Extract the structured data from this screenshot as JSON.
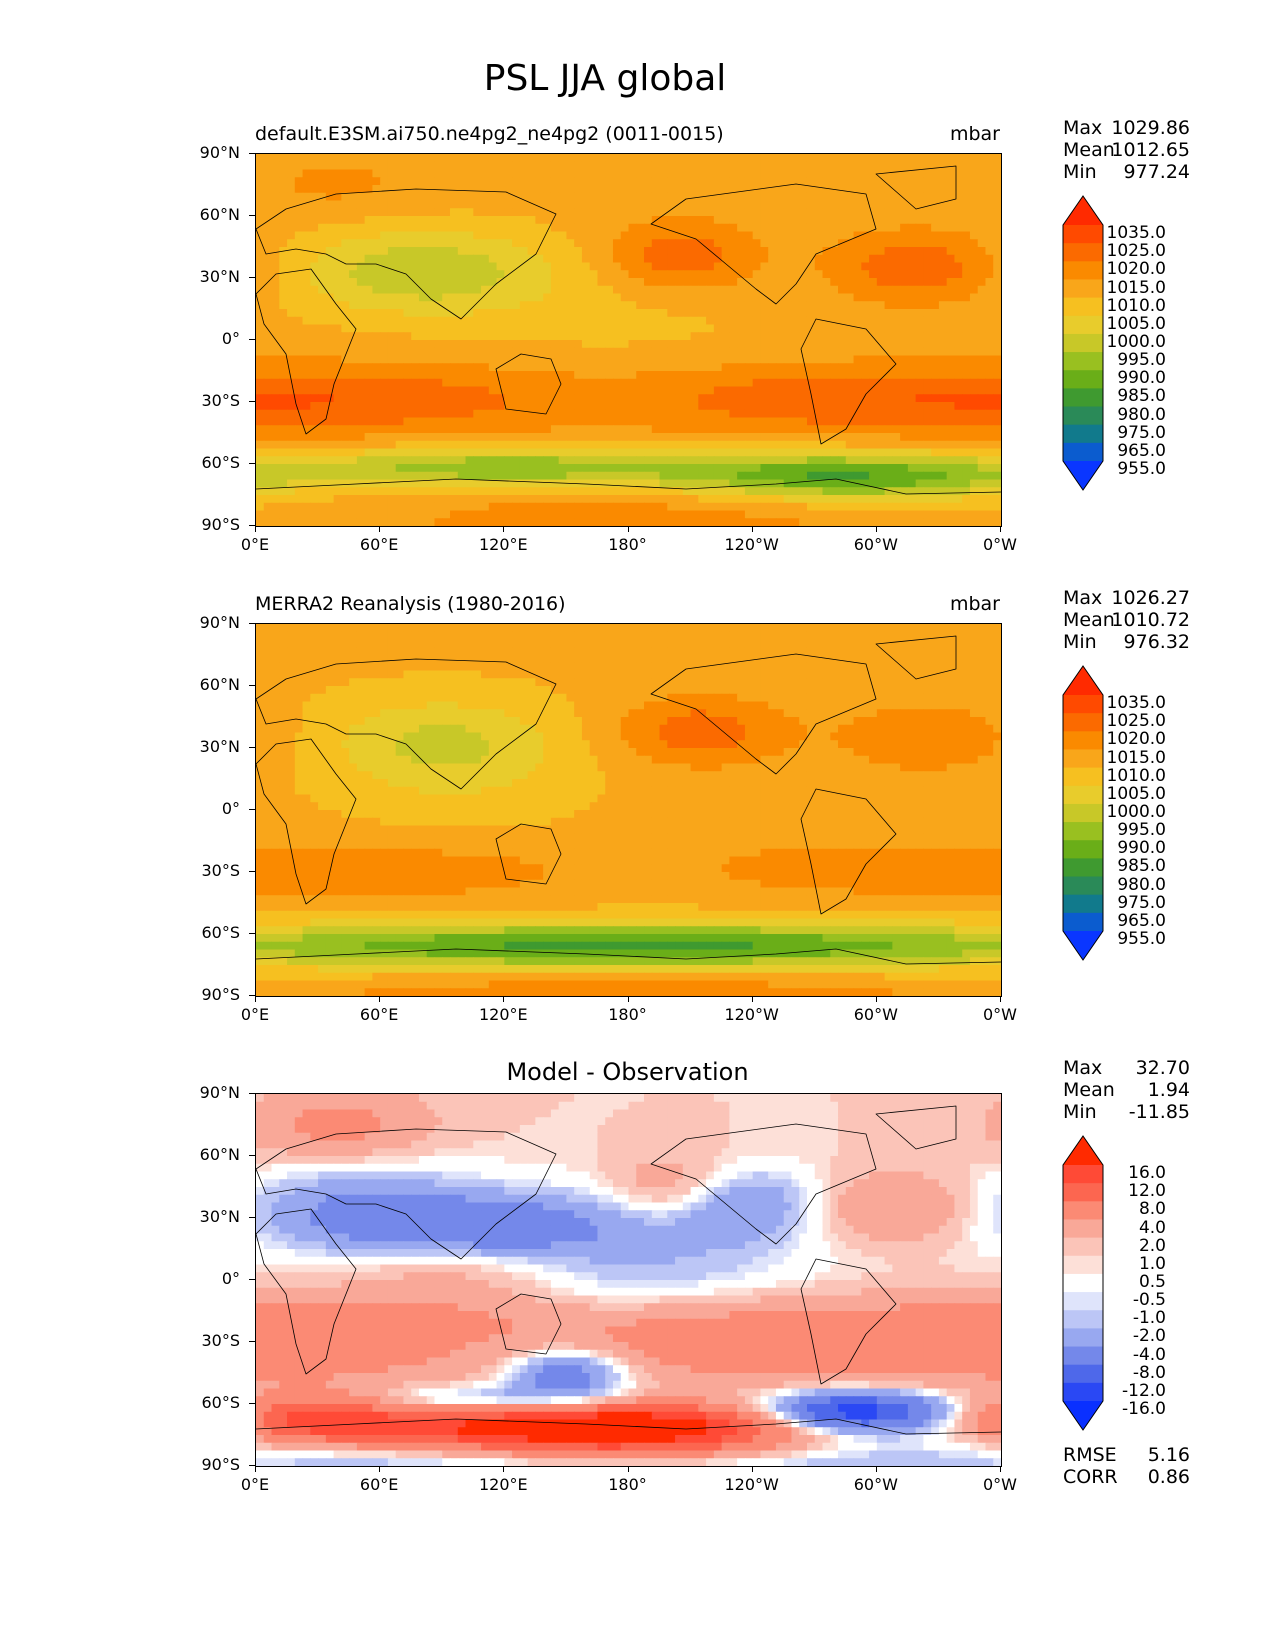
{
  "figure": {
    "title": "PSL JJA global"
  },
  "axes": {
    "lat_labels": [
      "90°N",
      "60°N",
      "30°N",
      "0°",
      "30°S",
      "60°S",
      "90°S"
    ],
    "lon_labels": [
      "0°E",
      "60°E",
      "120°E",
      "180°",
      "120°W",
      "60°W",
      "0°W"
    ]
  },
  "panels": [
    {
      "title_left": "default.E3SM.ai750.ne4pg2_ne4pg2 (0011-0015)",
      "title_center": "",
      "units": "mbar",
      "stats": {
        "max_label": "Max",
        "max": "1029.86",
        "mean_label": "Mean",
        "mean": "1012.65",
        "min_label": "Min",
        "min": "977.24"
      },
      "colorbar": {
        "levels": [
          "1035.0",
          "1025.0",
          "1020.0",
          "1015.0",
          "1010.0",
          "1005.0",
          "1000.0",
          "995.0",
          "990.0",
          "985.0",
          "980.0",
          "975.0",
          "965.0",
          "955.0"
        ],
        "colors": [
          "#ff2a00",
          "#ff4a00",
          "#fb6a00",
          "#fa8a00",
          "#f9a61a",
          "#f6c020",
          "#e8cc2c",
          "#c8c828",
          "#99c020",
          "#6aae18",
          "#3f9a30",
          "#2a8a58",
          "#117a8c",
          "#0b5ccf",
          "#0a36ff"
        ]
      },
      "fields": "model"
    },
    {
      "title_left": "MERRA2 Reanalysis (1980-2016)",
      "title_center": "",
      "units": "mbar",
      "stats": {
        "max_label": "Max",
        "max": "1026.27",
        "mean_label": "Mean",
        "mean": "1010.72",
        "min_label": "Min",
        "min": "976.32"
      },
      "colorbar": {
        "levels": [
          "1035.0",
          "1025.0",
          "1020.0",
          "1015.0",
          "1010.0",
          "1005.0",
          "1000.0",
          "995.0",
          "990.0",
          "985.0",
          "980.0",
          "975.0",
          "965.0",
          "955.0"
        ],
        "colors": [
          "#ff2a00",
          "#ff4a00",
          "#fb6a00",
          "#fa8a00",
          "#f9a61a",
          "#f6c020",
          "#e8cc2c",
          "#c8c828",
          "#99c020",
          "#6aae18",
          "#3f9a30",
          "#2a8a58",
          "#117a8c",
          "#0b5ccf",
          "#0a36ff"
        ]
      },
      "fields": "obs"
    },
    {
      "title_left": "",
      "title_center": "Model - Observation",
      "units": "",
      "stats": {
        "max_label": "Max",
        "max": "32.70",
        "mean_label": "Mean",
        "mean": "1.94",
        "min_label": "Min",
        "min": "-11.85"
      },
      "extra_stats": {
        "rmse_label": "RMSE",
        "rmse": "5.16",
        "corr_label": "CORR",
        "corr": "0.86"
      },
      "colorbar": {
        "levels": [
          "16.0",
          "12.0",
          "8.0",
          "4.0",
          "2.0",
          "1.0",
          "0.5",
          "-0.5",
          "-1.0",
          "-2.0",
          "-4.0",
          "-8.0",
          "-12.0",
          "-16.0"
        ],
        "colors": [
          "#ff2a00",
          "#ff4a36",
          "#fc6650",
          "#fb8a74",
          "#f9a898",
          "#fbc4b8",
          "#fde0d8",
          "#ffffff",
          "#dfe4fb",
          "#bcc6f6",
          "#98a8f0",
          "#7488ea",
          "#4e68ea",
          "#2a48f4",
          "#0a30ff"
        ]
      },
      "fields": "diff"
    }
  ]
}
